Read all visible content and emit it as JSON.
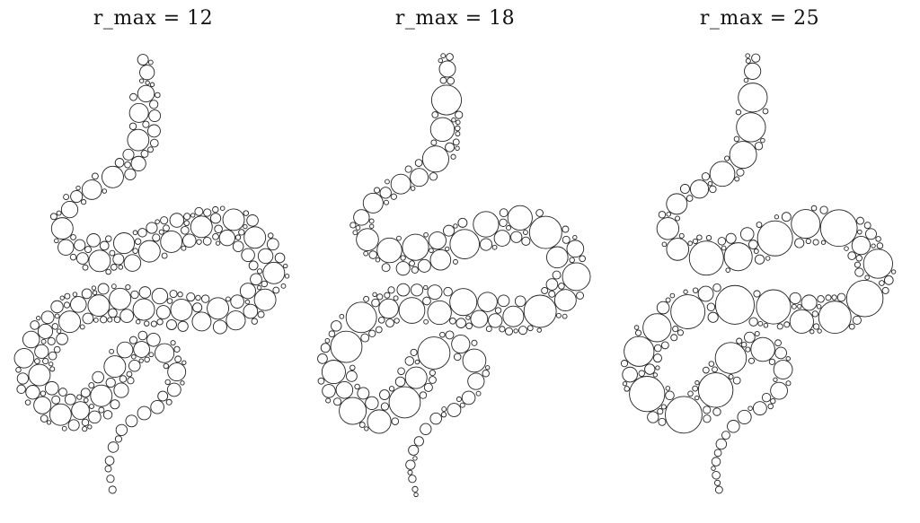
{
  "figure": {
    "panels": [
      {
        "title": "r_max = 12",
        "r_max": 12
      },
      {
        "title": "r_max = 18",
        "r_max": 18
      },
      {
        "title": "r_max = 25",
        "r_max": 25
      }
    ],
    "stroke_color": "#222222",
    "background_color": "#ffffff"
  }
}
